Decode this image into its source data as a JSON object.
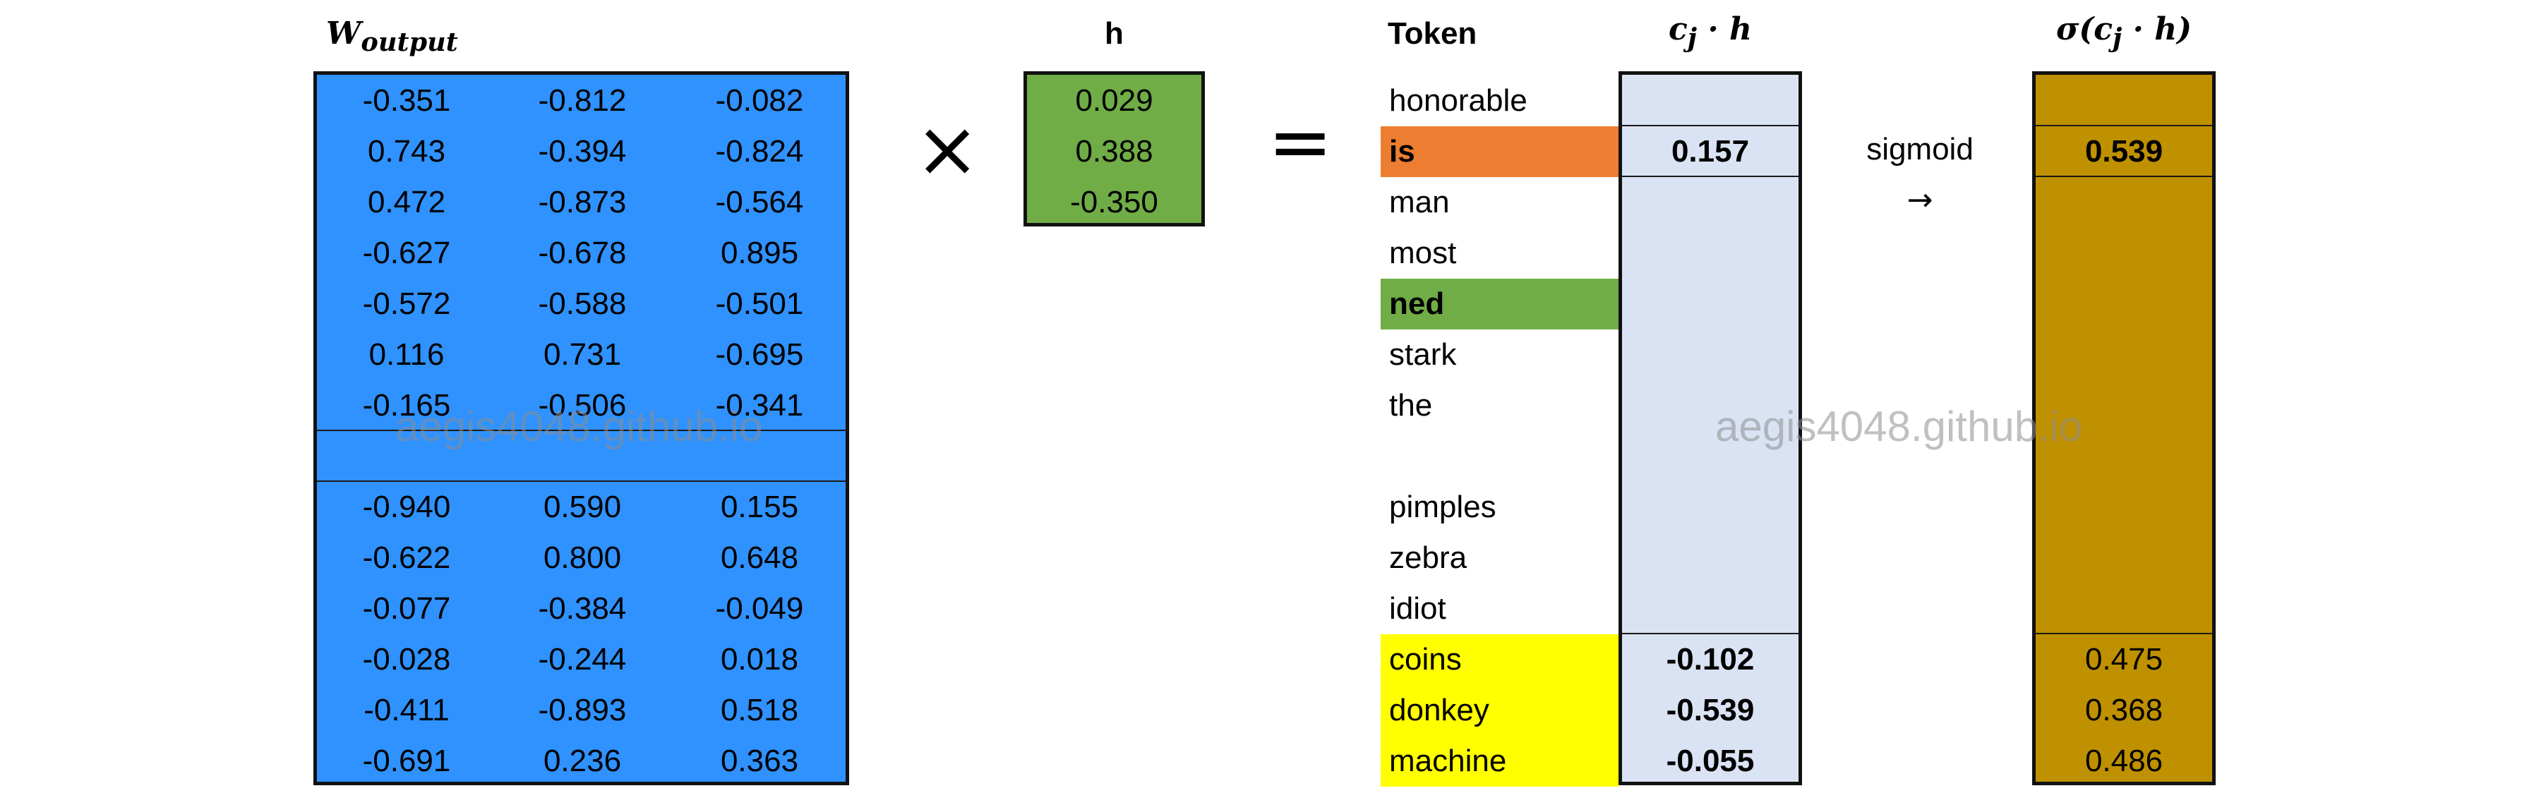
{
  "headers": {
    "w_output_main": "W",
    "w_output_sub": "output",
    "h": "h",
    "token": "Token",
    "dot_product": "c",
    "dot_product_sub": "j",
    "dot_product_tail": " · h",
    "sigma": "σ(c",
    "sigma_sub": "j",
    "sigma_tail": " · h)"
  },
  "operators": {
    "times": "×",
    "equals": "="
  },
  "sigmoid_label": "sigmoid",
  "sigmoid_arrow": "→",
  "watermark": "aegis4048.github.io",
  "w_output_rows": [
    [
      "-0.351",
      "-0.812",
      "-0.082"
    ],
    [
      "0.743",
      "-0.394",
      "-0.824"
    ],
    [
      "0.472",
      "-0.873",
      "-0.564"
    ],
    [
      "-0.627",
      "-0.678",
      "0.895"
    ],
    [
      "-0.572",
      "-0.588",
      "-0.501"
    ],
    [
      "0.116",
      "0.731",
      "-0.695"
    ],
    [
      "-0.165",
      "-0.506",
      "-0.341"
    ],
    [
      "",
      "",
      ""
    ],
    [
      "-0.940",
      "0.590",
      "0.155"
    ],
    [
      "-0.622",
      "0.800",
      "0.648"
    ],
    [
      "-0.077",
      "-0.384",
      "-0.049"
    ],
    [
      "-0.028",
      "-0.244",
      "0.018"
    ],
    [
      "-0.411",
      "-0.893",
      "0.518"
    ],
    [
      "-0.691",
      "0.236",
      "0.363"
    ]
  ],
  "h_values": [
    "0.029",
    "0.388",
    "-0.350"
  ],
  "tokens": [
    "honorable",
    "is",
    "man",
    "most",
    "ned",
    "stark",
    "the",
    "",
    "pimples",
    "zebra",
    "idiot",
    "coins",
    "donkey",
    "machine"
  ],
  "dot_values": [
    "",
    "0.157",
    "",
    "",
    "",
    "",
    "",
    "",
    "",
    "",
    "",
    "-0.102",
    "-0.539",
    "-0.055"
  ],
  "sigmoid_values": [
    "",
    "0.539",
    "",
    "",
    "",
    "",
    "",
    "",
    "",
    "",
    "",
    "0.475",
    "0.368",
    "0.486"
  ],
  "colors": {
    "matrix_bg": "#2f92ff",
    "h_bg": "#70ad47",
    "dot_bg": "#dae3f3",
    "sigmoid_bg": "#bf9000",
    "target_highlight": "#ed7d31",
    "context_highlight": "#70ad47",
    "negative_highlight": "#ffff00"
  }
}
